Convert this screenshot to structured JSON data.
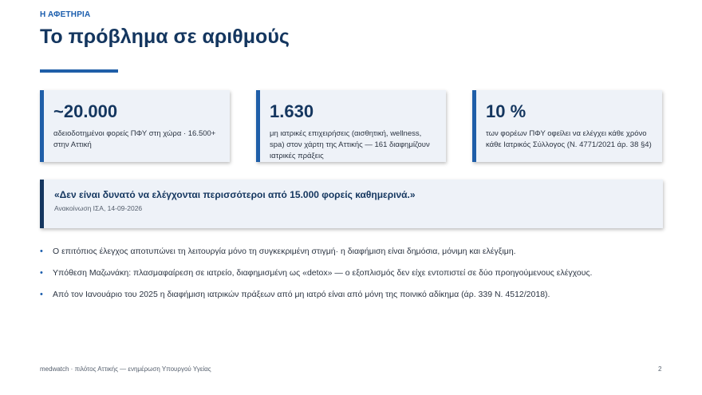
{
  "header": {
    "eyebrow": "Η ΑΦΕΤΗΡΙΑ",
    "title": "Το πρόβλημα σε αριθμούς"
  },
  "stats": [
    {
      "value": "~20.000",
      "description": "αδειοδοτημένοι φορείς ΠΦΥ στη χώρα · 16.500+ στην Αττική"
    },
    {
      "value": "1.630",
      "description": "μη ιατρικές επιχειρήσεις (αισθητική, wellness, spa) στον χάρτη της Αττικής — 161 διαφημίζουν ιατρικές πράξεις"
    },
    {
      "value": "10 %",
      "description": "των φορέων ΠΦΥ οφείλει να ελέγχει κάθε χρόνο κάθε Ιατρικός Σύλλογος (Ν. 4771/2021 άρ. 38 §4)"
    }
  ],
  "quote": {
    "text": "«Δεν είναι δυνατό να ελέγχονται περισσότεροι από 15.000 φορείς καθημερινά.»",
    "source": "Ανακοίνωση ΙΣΑ, 14-09-2026"
  },
  "bullets": [
    "Ο επιτόπιος έλεγχος αποτυπώνει τη λειτουργία μόνο τη συγκεκριμένη στιγμή· η διαφήμιση είναι δημόσια, μόνιμη και ελέγξιμη.",
    "Υπόθεση Μαζωνάκη: πλασμαφαίρεση σε ιατρείο, διαφημισμένη ως «detox» — ο εξοπλισμός δεν είχε εντοπιστεί σε δύο προηγούμενους ελέγχους.",
    "Από τον Ιανουάριο του 2025 η διαφήμιση ιατρικών πράξεων από μη ιατρό είναι από μόνη της ποινικό αδίκημα (άρ. 339 Ν. 4512/2018)."
  ],
  "footer": {
    "left": "medwatch · πιλότος Αττικής — ενημέρωση Υπουργού Υγείας",
    "page_number": "2"
  }
}
